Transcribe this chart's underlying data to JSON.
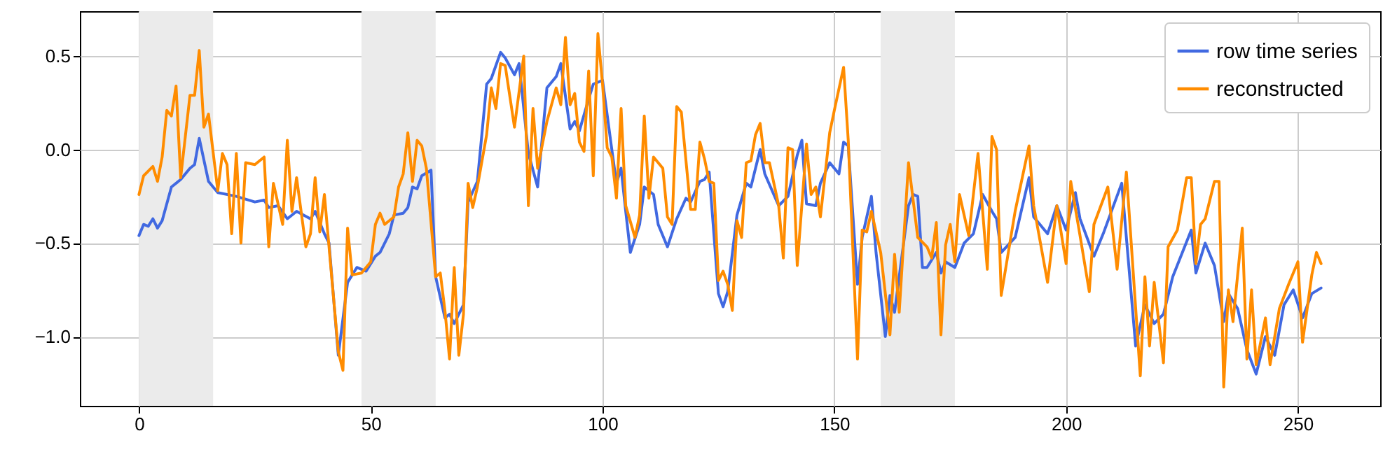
{
  "chart_data": {
    "type": "line",
    "series": [
      {
        "name": "row time series",
        "color": "#4169e1",
        "x": [
          0,
          1,
          2,
          3,
          4,
          5,
          7,
          9,
          11,
          12,
          13,
          15,
          17,
          21,
          25,
          27,
          28,
          30,
          32,
          34,
          37,
          38,
          40,
          41,
          43,
          45,
          47,
          49,
          51,
          52,
          54,
          55,
          57,
          58,
          59,
          60,
          61,
          63,
          64,
          66,
          67,
          68,
          70,
          71,
          73,
          75,
          76,
          78,
          79,
          81,
          82,
          84,
          86,
          88,
          90,
          91,
          93,
          94,
          95,
          97,
          98,
          100,
          102,
          103,
          104,
          105,
          106,
          108,
          109,
          111,
          112,
          114,
          116,
          118,
          119,
          121,
          122,
          123,
          125,
          126,
          127,
          129,
          131,
          132,
          134,
          135,
          138,
          140,
          142,
          143,
          144,
          146,
          147,
          149,
          151,
          152,
          153,
          155,
          156,
          158,
          159,
          161,
          162,
          163,
          166,
          167,
          168,
          169,
          170,
          172,
          173,
          174,
          176,
          178,
          180,
          182,
          184,
          185,
          186,
          189,
          192,
          193,
          196,
          198,
          200,
          202,
          203,
          206,
          208,
          212,
          215,
          217,
          219,
          221,
          223,
          227,
          228,
          230,
          232,
          234,
          235,
          237,
          239,
          241,
          243,
          245,
          247,
          249,
          251,
          253,
          255
        ],
        "values": [
          -0.46,
          -0.4,
          -0.41,
          -0.37,
          -0.42,
          -0.38,
          -0.2,
          -0.16,
          -0.1,
          -0.08,
          0.06,
          -0.17,
          -0.23,
          -0.25,
          -0.28,
          -0.27,
          -0.31,
          -0.3,
          -0.37,
          -0.33,
          -0.37,
          -0.33,
          -0.45,
          -0.5,
          -1.1,
          -0.71,
          -0.63,
          -0.65,
          -0.57,
          -0.55,
          -0.45,
          -0.35,
          -0.34,
          -0.31,
          -0.2,
          -0.21,
          -0.14,
          -0.11,
          -0.68,
          -0.9,
          -0.88,
          -0.93,
          -0.83,
          -0.28,
          -0.17,
          0.35,
          0.38,
          0.52,
          0.49,
          0.4,
          0.46,
          -0.02,
          -0.2,
          0.33,
          0.39,
          0.46,
          0.11,
          0.15,
          0.1,
          0.27,
          0.35,
          0.37,
          0.0,
          -0.18,
          -0.1,
          -0.33,
          -0.55,
          -0.4,
          -0.2,
          -0.24,
          -0.4,
          -0.52,
          -0.37,
          -0.26,
          -0.28,
          -0.17,
          -0.16,
          -0.12,
          -0.77,
          -0.84,
          -0.76,
          -0.35,
          -0.18,
          -0.2,
          0.0,
          -0.13,
          -0.3,
          -0.25,
          -0.03,
          0.05,
          -0.29,
          -0.3,
          -0.18,
          -0.07,
          -0.13,
          0.04,
          0.02,
          -0.72,
          -0.47,
          -0.25,
          -0.55,
          -1.0,
          -0.78,
          -0.87,
          -0.3,
          -0.24,
          -0.25,
          -0.63,
          -0.63,
          -0.55,
          -0.66,
          -0.6,
          -0.63,
          -0.5,
          -0.45,
          -0.24,
          -0.33,
          -0.37,
          -0.55,
          -0.47,
          -0.15,
          -0.36,
          -0.45,
          -0.3,
          -0.43,
          -0.23,
          -0.37,
          -0.57,
          -0.45,
          -0.18,
          -1.05,
          -0.83,
          -0.93,
          -0.88,
          -0.68,
          -0.43,
          -0.66,
          -0.5,
          -0.62,
          -0.92,
          -0.77,
          -0.85,
          -1.07,
          -1.2,
          -1.0,
          -1.1,
          -0.83,
          -0.75,
          -0.9,
          -0.77,
          -0.74
        ]
      },
      {
        "name": "reconstructed",
        "color": "#ff8c00",
        "x": [
          0,
          1,
          3,
          4,
          5,
          6,
          7,
          8,
          9,
          11,
          12,
          13,
          14,
          15,
          17,
          18,
          19,
          20,
          21,
          22,
          23,
          25,
          27,
          28,
          29,
          31,
          32,
          33,
          34,
          36,
          37,
          38,
          39,
          40,
          43,
          44,
          45,
          46,
          48,
          50,
          51,
          52,
          53,
          55,
          56,
          57,
          58,
          59,
          60,
          61,
          62,
          64,
          65,
          66,
          67,
          68,
          69,
          70,
          71,
          72,
          73,
          75,
          76,
          77,
          78,
          79,
          81,
          83,
          84,
          85,
          86,
          88,
          90,
          91,
          92,
          93,
          94,
          95,
          96,
          97,
          98,
          99,
          100,
          101,
          102,
          103,
          104,
          105,
          107,
          108,
          109,
          110,
          111,
          113,
          114,
          115,
          116,
          117,
          119,
          120,
          121,
          122,
          123,
          124,
          125,
          126,
          127,
          128,
          129,
          130,
          131,
          132,
          133,
          134,
          135,
          136,
          138,
          139,
          140,
          141,
          142,
          144,
          145,
          146,
          147,
          149,
          150,
          152,
          153,
          155,
          156,
          157,
          158,
          160,
          162,
          163,
          164,
          166,
          168,
          170,
          171,
          172,
          173,
          174,
          175,
          176,
          177,
          179,
          181,
          183,
          184,
          185,
          186,
          189,
          192,
          193,
          196,
          198,
          200,
          201,
          203,
          205,
          206,
          209,
          211,
          213,
          216,
          217,
          218,
          219,
          221,
          222,
          224,
          226,
          227,
          228,
          229,
          230,
          232,
          233,
          234,
          235,
          236,
          238,
          239,
          240,
          241,
          243,
          244,
          246,
          248,
          250,
          251,
          253,
          254,
          255
        ],
        "values": [
          -0.24,
          -0.14,
          -0.09,
          -0.17,
          -0.04,
          0.21,
          0.18,
          0.34,
          -0.15,
          0.29,
          0.29,
          0.53,
          0.12,
          0.19,
          -0.22,
          -0.02,
          -0.08,
          -0.45,
          -0.02,
          -0.5,
          -0.07,
          -0.08,
          -0.04,
          -0.52,
          -0.18,
          -0.4,
          0.05,
          -0.33,
          -0.15,
          -0.52,
          -0.45,
          -0.15,
          -0.44,
          -0.24,
          -1.08,
          -1.18,
          -0.42,
          -0.67,
          -0.66,
          -0.6,
          -0.4,
          -0.34,
          -0.4,
          -0.36,
          -0.2,
          -0.13,
          0.09,
          -0.17,
          0.05,
          0.02,
          -0.1,
          -0.68,
          -0.66,
          -0.86,
          -1.12,
          -0.63,
          -1.1,
          -0.88,
          -0.18,
          -0.31,
          -0.2,
          0.08,
          0.33,
          0.22,
          0.46,
          0.45,
          0.12,
          0.5,
          -0.3,
          0.22,
          -0.1,
          0.15,
          0.33,
          0.24,
          0.6,
          0.24,
          0.3,
          0.04,
          -0.01,
          0.42,
          -0.14,
          0.62,
          0.35,
          0.01,
          -0.04,
          -0.26,
          0.22,
          -0.3,
          -0.47,
          -0.35,
          0.18,
          -0.26,
          -0.04,
          -0.1,
          -0.36,
          -0.4,
          0.23,
          0.2,
          -0.32,
          -0.32,
          0.04,
          -0.05,
          -0.17,
          -0.18,
          -0.7,
          -0.65,
          -0.72,
          -0.86,
          -0.38,
          -0.47,
          -0.07,
          -0.06,
          0.08,
          0.14,
          -0.07,
          -0.07,
          -0.3,
          -0.58,
          0.01,
          0.0,
          -0.62,
          0.03,
          -0.24,
          -0.2,
          -0.36,
          0.09,
          0.21,
          0.44,
          0.05,
          -1.12,
          -0.43,
          -0.44,
          -0.33,
          -0.55,
          -0.99,
          -0.56,
          -0.87,
          -0.07,
          -0.47,
          -0.52,
          -0.58,
          -0.39,
          -0.99,
          -0.51,
          -0.4,
          -0.6,
          -0.24,
          -0.46,
          -0.02,
          -0.64,
          0.07,
          0.0,
          -0.78,
          -0.33,
          0.02,
          -0.3,
          -0.71,
          -0.3,
          -0.61,
          -0.17,
          -0.46,
          -0.76,
          -0.4,
          -0.2,
          -0.64,
          -0.12,
          -1.21,
          -0.68,
          -1.05,
          -0.71,
          -1.14,
          -0.52,
          -0.43,
          -0.15,
          -0.15,
          -0.61,
          -0.4,
          -0.37,
          -0.17,
          -0.17,
          -1.27,
          -0.75,
          -0.92,
          -0.42,
          -1.12,
          -0.75,
          -1.15,
          -0.9,
          -1.15,
          -0.85,
          -0.72,
          -0.6,
          -1.03,
          -0.67,
          -0.55,
          -0.61
        ]
      }
    ],
    "xlim": [
      -12.75,
      267.75
    ],
    "xticks": [
      0,
      50,
      100,
      150,
      200,
      250
    ],
    "ylim": [
      -1.37,
      0.74
    ],
    "yticks": [
      {
        "value": -1.0,
        "label": "−1.0"
      },
      {
        "value": -0.5,
        "label": "−0.5"
      },
      {
        "value": 0.0,
        "label": "0.0"
      },
      {
        "value": 0.5,
        "label": "0.5"
      }
    ],
    "bands": [
      {
        "axis": "x",
        "from": 0,
        "to": 16,
        "color": "#ebebeb"
      },
      {
        "axis": "x",
        "from": 48,
        "to": 64,
        "color": "#ebebeb"
      },
      {
        "axis": "x",
        "from": 160,
        "to": 176,
        "color": "#ebebeb"
      }
    ],
    "grid": true,
    "legend": "top right",
    "line_style": "solid"
  }
}
